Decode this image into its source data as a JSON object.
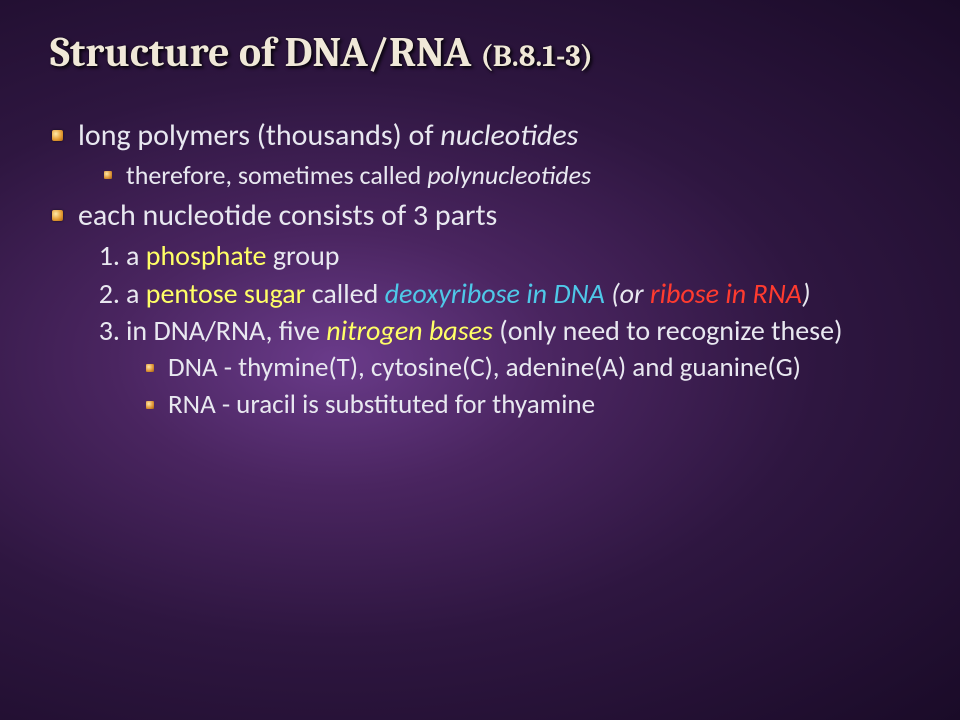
{
  "colors": {
    "title": "#f0e8d8",
    "body_text": "#e8e8f0",
    "highlight_yellow": "#ffff66",
    "highlight_cyan": "#4fc8e8",
    "highlight_red": "#ff3b2f",
    "bullet_gradient_light": "#ffe9a8",
    "bullet_gradient_mid": "#e8a038",
    "bullet_gradient_dark": "#a86510",
    "bg_center": "#6a3b8a",
    "bg_outer": "#1a0b28"
  },
  "fonts": {
    "title_family": "Cambria",
    "body_family": "Calibri",
    "title_main_pt": 42,
    "title_sub_pt": 30,
    "l1_pt": 30,
    "l2_pt": 26,
    "ol_pt": 28,
    "l3_pt": 27
  },
  "title": {
    "main": "Structure of DNA/RNA ",
    "sub": "(B.8.1-3)"
  },
  "b1": {
    "pre": "long polymers (thousands) of ",
    "em": "nucleotides",
    "sub_pre": "therefore, sometimes called ",
    "sub_em": "polynucleotides"
  },
  "b2": {
    "text": "each nucleotide consists of 3 parts"
  },
  "p1": {
    "a": "a ",
    "b": "phosphate",
    "c": " group"
  },
  "p2": {
    "a": "a ",
    "b": "pentose sugar",
    "c": " called ",
    "d": "deoxyribose in DNA ",
    "e": "(or ",
    "f": "ribose in RNA",
    "g": ")"
  },
  "p3": {
    "a": "in DNA/RNA, five ",
    "b": "nitrogen bases",
    "c": " (only need to recognize these)"
  },
  "dna": "DNA - thymine(T), cytosine(C), adenine(A) and guanine(G)",
  "rna": "RNA - uracil is substituted for thyamine"
}
